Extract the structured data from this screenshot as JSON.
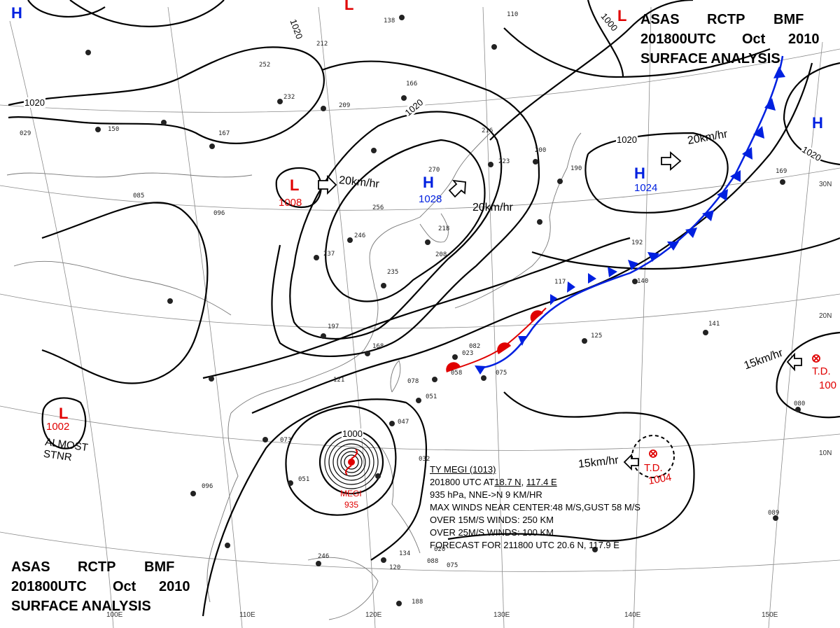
{
  "header_top": {
    "line1": [
      "ASAS",
      "RCTP",
      "BMF"
    ],
    "line2": [
      "201800UTC",
      "Oct",
      "2010"
    ],
    "line3": "SURFACE  ANALYSIS"
  },
  "header_bottom": {
    "line1": [
      "ASAS",
      "RCTP",
      "BMF"
    ],
    "line2": [
      "201800UTC",
      "Oct",
      "2010"
    ],
    "line3": "SURFACE  ANALYSIS"
  },
  "systems": {
    "low_west": {
      "symbol": "L",
      "pressure": "1008",
      "color": "#e00000"
    },
    "low_sw": {
      "symbol": "L",
      "pressure": "1002",
      "note": "ALMOST\nSTNR",
      "color": "#e00000"
    },
    "low_top_center": {
      "symbol": "L",
      "color": "#e00000"
    },
    "low_top_right": {
      "symbol": "L",
      "color": "#e00000"
    },
    "high_center": {
      "symbol": "H",
      "pressure": "1028",
      "color": "#0020e0"
    },
    "high_east": {
      "symbol": "H",
      "pressure": "1024",
      "color": "#0020e0"
    },
    "high_far_east": {
      "symbol": "H",
      "color": "#0020e0"
    },
    "high_top_left": {
      "symbol": "H",
      "color": "#0020e0"
    },
    "typhoon": {
      "name": "MEGI",
      "pressure": "935",
      "color": "#e00000"
    },
    "td_east": {
      "symbol": "T.D.",
      "pressure": "1004",
      "color": "#e00000"
    },
    "td_far_east": {
      "symbol": "T.D.",
      "pressure": "100",
      "color": "#e00000"
    }
  },
  "motions": {
    "m1": "20km/hr",
    "m2": "20km/hr",
    "m3": "20km/hr",
    "m4": "15km/hr",
    "m5": "15km/hr"
  },
  "isobar_labels": {
    "a": "1020",
    "b": "1020",
    "c": "1020",
    "d": "1020",
    "e": "1020",
    "f": "1000",
    "g": "1000"
  },
  "typhoon_info": {
    "line1": "TY  MEGI  (1013)",
    "line2_a": "201800 UTC  AT",
    "line2_lat": "18.7 N",
    "line2_mid": ", ",
    "line2_lon": "117.4 E",
    "line3": "935 hPa, NNE->N  9 KM/HR",
    "line4": "MAX WINDS NEAR CENTER:48 M/S,GUST 58 M/S",
    "line5": "OVER 15M/S WINDS: 250 KM",
    "line6": "OVER 25M/S WINDS: 100 KM",
    "line7": "FORECAST FOR 211800 UTC 20.6 N, 117.9 E"
  },
  "longitude_labels": [
    "100E",
    "110E",
    "120E",
    "130E",
    "140E",
    "150E"
  ],
  "latitude_labels": [
    "30N",
    "20N",
    "10N"
  ],
  "station_values": [
    "212",
    "209",
    "166",
    "216",
    "223",
    "200",
    "190",
    "169",
    "270",
    "256",
    "246",
    "218",
    "208",
    "235",
    "197",
    "168",
    "121",
    "078",
    "082",
    "075",
    "058",
    "051",
    "047",
    "073",
    "051",
    "096",
    "125",
    "141",
    "192",
    "140",
    "117",
    "080",
    "089",
    "252",
    "232",
    "167",
    "150",
    "138",
    "110",
    "188",
    "134",
    "120",
    "088",
    "075",
    "096",
    "032",
    "085",
    "029",
    "237",
    "246",
    "020",
    "023"
  ],
  "map_colors": {
    "cold_front": "#0020e0",
    "warm_front": "#e00000",
    "isobar": "#000000",
    "graticule": "#888888",
    "coast": "#777777"
  }
}
